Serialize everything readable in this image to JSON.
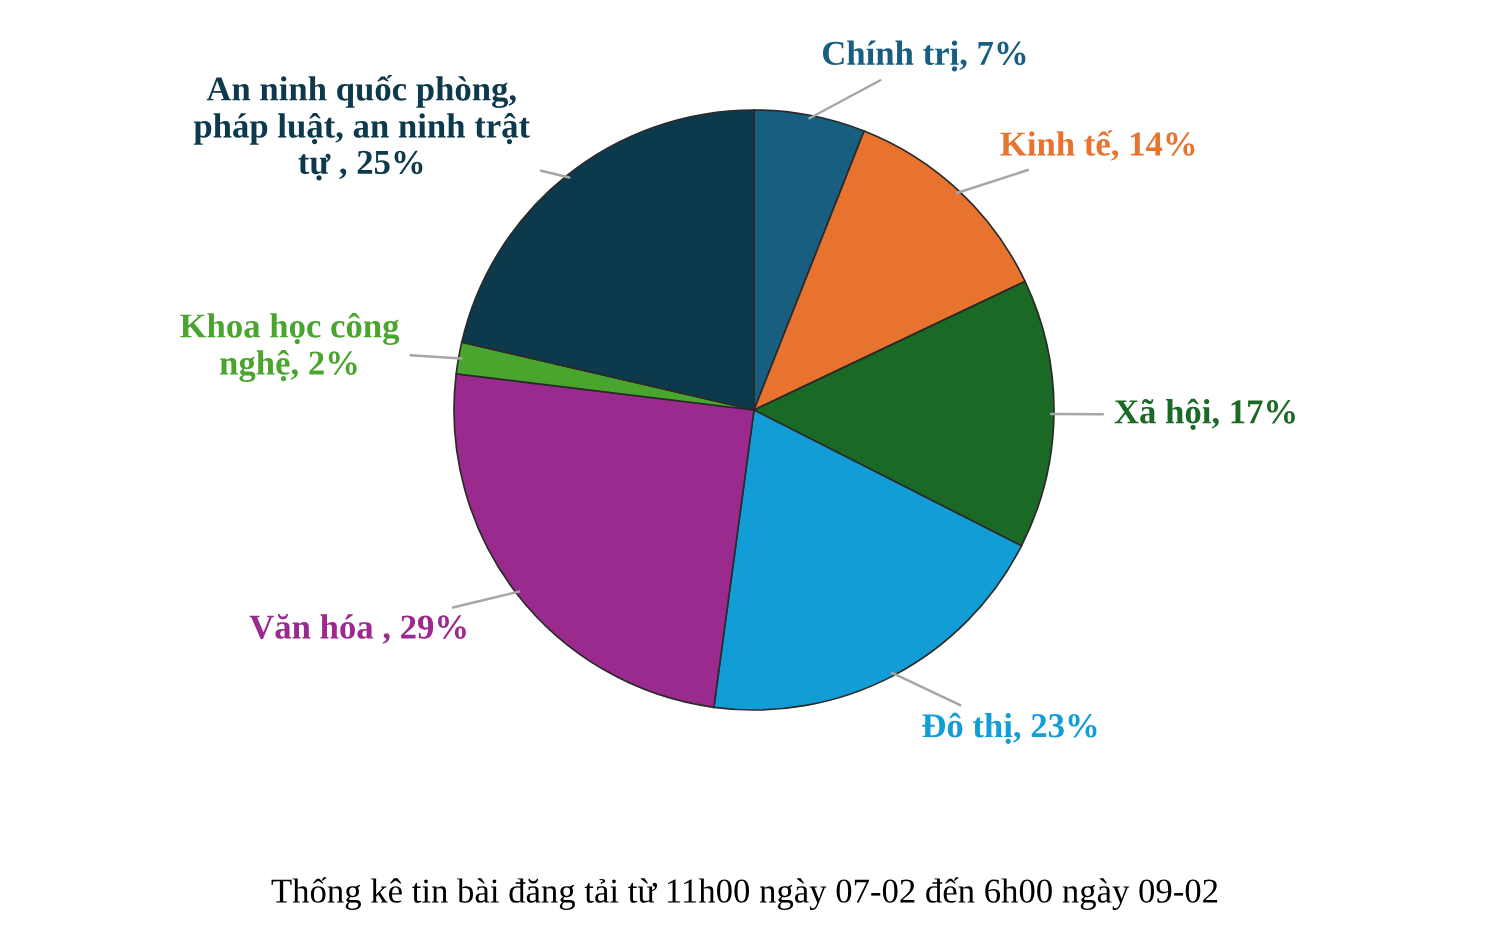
{
  "chart_data": {
    "type": "pie",
    "title": "Thống kê tin bài đăng tải từ 11h00 ngày 07-02 đến 6h00 ngày 09-02",
    "categories": [
      "Chính trị",
      "Kinh tế",
      "Xã hội",
      "Đô thị",
      "Văn hóa ",
      "Khoa học công nghệ",
      "An ninh quốc phòng, pháp luật, an ninh trật tự "
    ],
    "values": [
      7,
      14,
      17,
      23,
      29,
      2,
      25
    ],
    "value_labels": [
      "7%",
      "14%",
      "17%",
      "23%",
      "29%",
      "2%",
      "25%"
    ],
    "colors": [
      "#175e80",
      "#e8732f",
      "#1a6924",
      "#129dd6",
      "#9b2a8e",
      "#4aa52e",
      "#0d394d"
    ]
  }
}
